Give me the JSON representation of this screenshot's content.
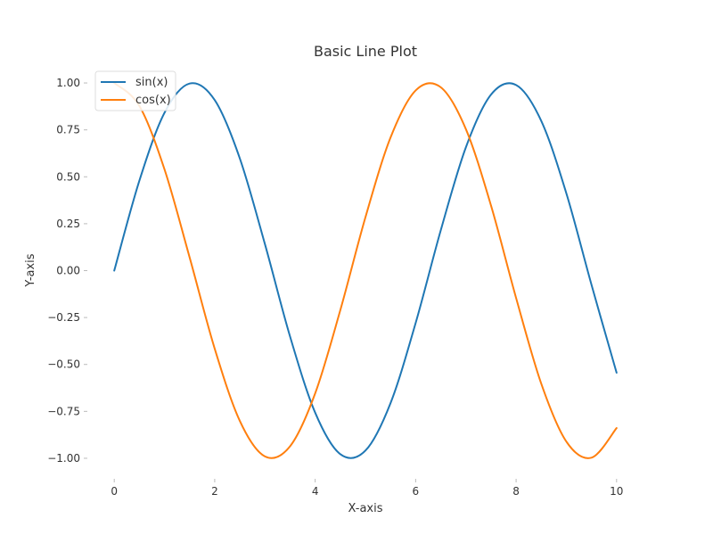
{
  "chart_data": {
    "type": "line",
    "title": "Basic Line Plot",
    "xlabel": "X-axis",
    "ylabel": "Y-axis",
    "xlim": [
      -0.5,
      10.5
    ],
    "ylim": [
      -1.1,
      1.1
    ],
    "x_ticks": [
      0,
      2,
      4,
      6,
      8,
      10
    ],
    "x_tick_labels": [
      "0",
      "2",
      "4",
      "6",
      "8",
      "10"
    ],
    "y_ticks": [
      1.0,
      0.75,
      0.5,
      0.25,
      0.0,
      -0.25,
      -0.5,
      -0.75,
      -1.0
    ],
    "y_tick_labels": [
      "1.00",
      "0.75",
      "0.50",
      "0.25",
      "0.00",
      "−0.25",
      "−0.50",
      "−0.75",
      "−1.00"
    ],
    "grid": false,
    "legend_position": "upper-left",
    "x": [
      0,
      0.5,
      1,
      1.5,
      2,
      2.5,
      3,
      3.5,
      4,
      4.5,
      5,
      5.5,
      6,
      6.5,
      7,
      7.5,
      8,
      8.5,
      9,
      9.5,
      10
    ],
    "series": [
      {
        "name": "sin(x)",
        "color": "#1f77b4",
        "values": [
          0.0,
          0.479,
          0.841,
          0.997,
          0.909,
          0.598,
          0.141,
          -0.351,
          -0.757,
          -0.978,
          -0.959,
          -0.706,
          -0.279,
          0.215,
          0.657,
          0.938,
          0.989,
          0.798,
          0.412,
          -0.075,
          -0.544
        ]
      },
      {
        "name": "cos(x)",
        "color": "#ff7f0e",
        "values": [
          1.0,
          0.878,
          0.54,
          0.071,
          -0.416,
          -0.801,
          -0.99,
          -0.936,
          -0.654,
          -0.211,
          0.284,
          0.709,
          0.96,
          0.977,
          0.754,
          0.347,
          -0.146,
          -0.602,
          -0.911,
          -0.997,
          -0.839
        ]
      }
    ]
  }
}
